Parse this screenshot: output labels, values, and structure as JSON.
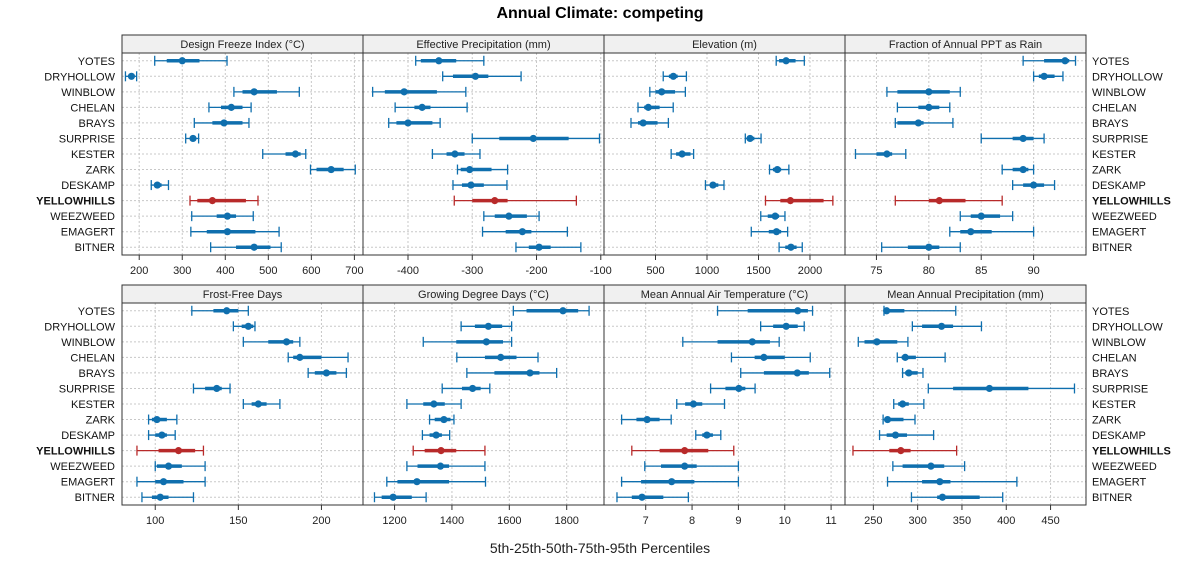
{
  "title": "Annual Climate: competing",
  "xlabel": "5th-25th-50th-75th-95th Percentiles",
  "colors": {
    "normal": "#0f6fae",
    "highlight": "#b82a2a",
    "strip_bg": "#f0f0f0",
    "grid": "#c8c8c8"
  },
  "sites": [
    "YOTES",
    "DRYHOLLOW",
    "WINBLOW",
    "CHELAN",
    "BRAYS",
    "SURPRISE",
    "KESTER",
    "ZARK",
    "DESKAMP",
    "YELLOWHILLS",
    "WEEZWEED",
    "EMAGERT",
    "BITNER"
  ],
  "highlight_site": "YELLOWHILLS",
  "chart_data": [
    {
      "type": "scatter",
      "title": "Design Freeze Index (°C)",
      "xlim": [
        160,
        720
      ],
      "ticks": [
        200,
        300,
        400,
        500,
        600,
        700
      ],
      "series": [
        [
          236,
          264,
          300,
          340,
          404
        ],
        [
          168,
          175,
          182,
          188,
          194
        ],
        [
          420,
          440,
          467,
          520,
          572
        ],
        [
          362,
          390,
          414,
          440,
          460
        ],
        [
          328,
          370,
          397,
          440,
          455
        ],
        [
          308,
          318,
          325,
          332,
          338
        ],
        [
          487,
          540,
          563,
          575,
          587
        ],
        [
          598,
          612,
          646,
          675,
          702
        ],
        [
          228,
          235,
          242,
          252,
          268
        ],
        [
          318,
          335,
          370,
          448,
          476
        ],
        [
          322,
          380,
          405,
          425,
          465
        ],
        [
          320,
          357,
          405,
          470,
          525
        ],
        [
          366,
          425,
          467,
          505,
          530
        ]
      ]
    },
    {
      "type": "scatter",
      "title": "Effective Precipitation (mm)",
      "xlim": [
        -470,
        -95
      ],
      "ticks": [
        -400,
        -300,
        -200,
        -100
      ],
      "series": [
        [
          -388,
          -380,
          -352,
          -325,
          -282
        ],
        [
          -346,
          -330,
          -295,
          -275,
          -224
        ],
        [
          -455,
          -436,
          -406,
          -355,
          -310
        ],
        [
          -420,
          -390,
          -378,
          -365,
          -308
        ],
        [
          -430,
          -418,
          -400,
          -362,
          -350
        ],
        [
          -300,
          -258,
          -205,
          -150,
          -102
        ],
        [
          -362,
          -340,
          -327,
          -312,
          -288
        ],
        [
          -323,
          -318,
          -304,
          -270,
          -245
        ],
        [
          -330,
          -316,
          -302,
          -282,
          -246
        ],
        [
          -328,
          -300,
          -265,
          -245,
          -138
        ],
        [
          -282,
          -265,
          -243,
          -215,
          -196
        ],
        [
          -284,
          -248,
          -222,
          -208,
          -152
        ],
        [
          -232,
          -212,
          -196,
          -178,
          -131
        ]
      ]
    },
    {
      "type": "scatter",
      "title": "Elevation (m)",
      "xlim": [
        0,
        2340
      ],
      "ticks": [
        500,
        1000,
        1500,
        2000
      ],
      "series": [
        [
          1672,
          1700,
          1768,
          1860,
          1945
        ],
        [
          575,
          630,
          673,
          715,
          800
        ],
        [
          445,
          500,
          560,
          690,
          790
        ],
        [
          330,
          390,
          430,
          540,
          672
        ],
        [
          262,
          330,
          380,
          520,
          625
        ],
        [
          1372,
          1400,
          1418,
          1460,
          1525
        ],
        [
          652,
          700,
          758,
          840,
          870
        ],
        [
          1607,
          1640,
          1683,
          1720,
          1795
        ],
        [
          985,
          1030,
          1058,
          1110,
          1165
        ],
        [
          1568,
          1712,
          1810,
          2132,
          2222
        ],
        [
          1522,
          1590,
          1662,
          1700,
          1757
        ],
        [
          1430,
          1600,
          1675,
          1720,
          1783
        ],
        [
          1700,
          1760,
          1815,
          1870,
          1925
        ]
      ]
    },
    {
      "type": "scatter",
      "title": "Fraction of Annual PPT as Rain",
      "xlim": [
        72,
        95
      ],
      "ticks": [
        75,
        80,
        85,
        90
      ],
      "series": [
        [
          89,
          91,
          93,
          93.4,
          94
        ],
        [
          90,
          90.5,
          91,
          92,
          92.8
        ],
        [
          76,
          77,
          80,
          82,
          83
        ],
        [
          77,
          79,
          80,
          81,
          82
        ],
        [
          76.8,
          77,
          79,
          79.5,
          82.3
        ],
        [
          85,
          88,
          89,
          90,
          91
        ],
        [
          73,
          75,
          76,
          76.5,
          77.8
        ],
        [
          87,
          88,
          89,
          89.5,
          90
        ],
        [
          88,
          89,
          90,
          91,
          92
        ],
        [
          76.8,
          80,
          81,
          83.5,
          87
        ],
        [
          83,
          84,
          85,
          86.8,
          88
        ],
        [
          82,
          83,
          84,
          86,
          90
        ],
        [
          75.5,
          78,
          80,
          81,
          83
        ]
      ]
    },
    {
      "type": "scatter",
      "title": "Frost-Free Days",
      "xlim": [
        80,
        225
      ],
      "ticks": [
        100,
        150,
        200
      ],
      "series": [
        [
          122,
          135,
          143,
          150,
          156
        ],
        [
          147,
          152,
          156,
          159,
          160
        ],
        [
          153,
          168,
          179,
          183,
          187
        ],
        [
          180,
          183,
          187,
          200,
          216
        ],
        [
          192,
          196,
          203,
          209,
          215
        ],
        [
          123,
          130,
          137,
          140,
          145
        ],
        [
          153,
          158,
          162,
          167,
          175
        ],
        [
          96,
          98,
          101,
          107,
          113
        ],
        [
          96,
          100,
          104,
          107,
          112
        ],
        [
          89,
          102,
          114,
          124,
          129
        ],
        [
          100,
          101,
          108,
          116,
          130
        ],
        [
          89,
          100,
          105,
          117,
          130
        ],
        [
          92,
          98,
          103,
          108,
          123
        ]
      ]
    },
    {
      "type": "scatter",
      "title": "Growing Degree Days (°C)",
      "xlim": [
        1090,
        1930
      ],
      "ticks": [
        1200,
        1400,
        1600,
        1800
      ],
      "series": [
        [
          1614,
          1660,
          1787,
          1840,
          1878
        ],
        [
          1432,
          1480,
          1527,
          1575,
          1608
        ],
        [
          1300,
          1415,
          1520,
          1578,
          1608
        ],
        [
          1417,
          1515,
          1570,
          1625,
          1700
        ],
        [
          1452,
          1548,
          1672,
          1705,
          1765
        ],
        [
          1366,
          1435,
          1472,
          1500,
          1532
        ],
        [
          1243,
          1300,
          1337,
          1375,
          1432
        ],
        [
          1322,
          1340,
          1372,
          1395,
          1407
        ],
        [
          1297,
          1322,
          1345,
          1365,
          1392
        ],
        [
          1265,
          1305,
          1362,
          1415,
          1515
        ],
        [
          1243,
          1280,
          1360,
          1390,
          1515
        ],
        [
          1173,
          1210,
          1278,
          1390,
          1517
        ],
        [
          1130,
          1155,
          1195,
          1260,
          1310
        ]
      ]
    },
    {
      "type": "scatter",
      "title": "Mean Annual Air Temperature (°C)",
      "xlim": [
        6.1,
        11.3
      ],
      "ticks": [
        7,
        8,
        9,
        10,
        11
      ],
      "series": [
        [
          8.55,
          9.2,
          10.28,
          10.5,
          10.6
        ],
        [
          9.48,
          9.75,
          10.03,
          10.28,
          10.42
        ],
        [
          7.8,
          8.55,
          9.3,
          9.68,
          9.88
        ],
        [
          8.85,
          9.35,
          9.55,
          10.0,
          10.55
        ],
        [
          9.05,
          9.55,
          10.27,
          10.52,
          10.97
        ],
        [
          8.4,
          8.72,
          9.01,
          9.15,
          9.36
        ],
        [
          7.67,
          7.85,
          8.03,
          8.22,
          8.7
        ],
        [
          6.48,
          6.8,
          7.03,
          7.3,
          7.55
        ],
        [
          8.08,
          8.22,
          8.32,
          8.45,
          8.62
        ],
        [
          6.7,
          7.3,
          7.84,
          8.35,
          8.9
        ],
        [
          6.98,
          7.33,
          7.84,
          8.1,
          9.0
        ],
        [
          6.48,
          6.9,
          7.56,
          8.05,
          9.0
        ],
        [
          6.38,
          6.7,
          6.92,
          7.38,
          7.92
        ]
      ]
    },
    {
      "type": "scatter",
      "title": "Mean Annual Precipitation (mm)",
      "xlim": [
        218,
        490
      ],
      "ticks": [
        250,
        300,
        350,
        400,
        450
      ],
      "series": [
        [
          262,
          268,
          265,
          285,
          343
        ],
        [
          294,
          305,
          327,
          340,
          372
        ],
        [
          233,
          240,
          254,
          277,
          289
        ],
        [
          277,
          282,
          286,
          298,
          331
        ],
        [
          283,
          286,
          290,
          300,
          306
        ],
        [
          312,
          340,
          381,
          425,
          477
        ],
        [
          273,
          278,
          283,
          290,
          307
        ],
        [
          261,
          265,
          266,
          284,
          297
        ],
        [
          257,
          265,
          275,
          288,
          318
        ],
        [
          227,
          268,
          281,
          292,
          344
        ],
        [
          272,
          283,
          315,
          330,
          353
        ],
        [
          266,
          305,
          325,
          337,
          412
        ],
        [
          293,
          322,
          328,
          370,
          396
        ]
      ]
    }
  ]
}
